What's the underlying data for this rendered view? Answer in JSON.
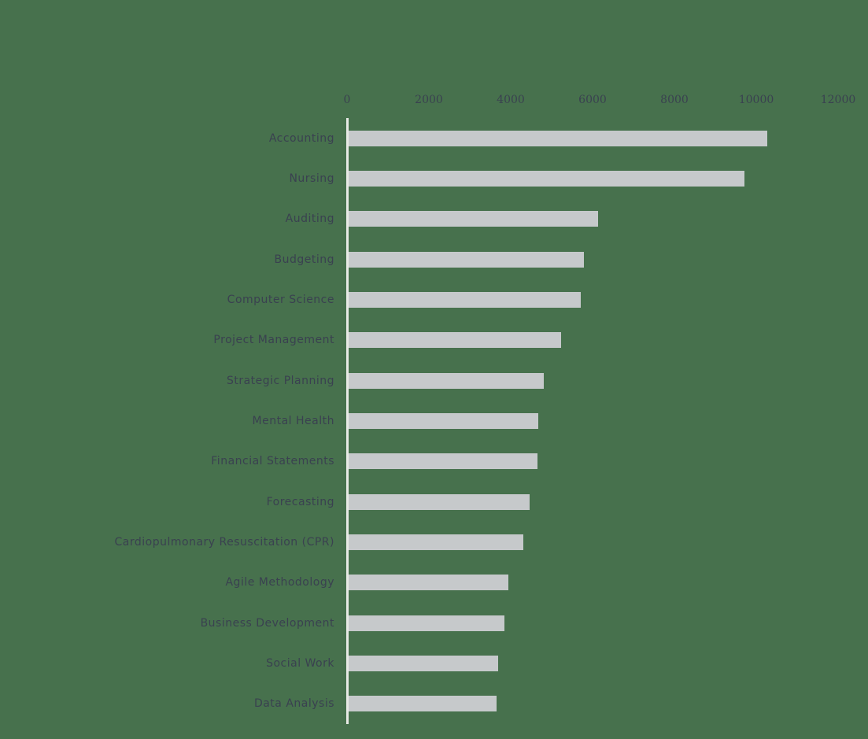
{
  "chart_data": {
    "type": "bar",
    "orientation": "horizontal",
    "title": "",
    "xlabel": "",
    "ylabel": "",
    "grid": false,
    "legend": null,
    "categories": [
      "Accounting",
      "Nursing",
      "Auditing",
      "Budgeting",
      "Computer Science",
      "Project Management",
      "Strategic Planning",
      "Mental Health",
      "Financial Statements",
      "Forecasting",
      "Cardiopulmonary Resuscitation (CPR)",
      "Agile Methodology",
      "Business Development",
      "Social Work",
      "Data Analysis"
    ],
    "values": [
      10230,
      9670,
      6100,
      5750,
      5670,
      5190,
      4770,
      4640,
      4620,
      4420,
      4270,
      3900,
      3810,
      3650,
      3620
    ],
    "xticks": [
      0,
      2000,
      4000,
      6000,
      8000,
      10000,
      12000
    ],
    "xtick_labels": [
      "0",
      "2000",
      "4000",
      "6000",
      "8000",
      "10000",
      "12000"
    ],
    "xlim": [
      0,
      12000
    ],
    "colors": {
      "background": "#47714d",
      "bar": "#c6c9cb",
      "axis_line": "#e8eae6",
      "text": "#3a4150"
    }
  }
}
